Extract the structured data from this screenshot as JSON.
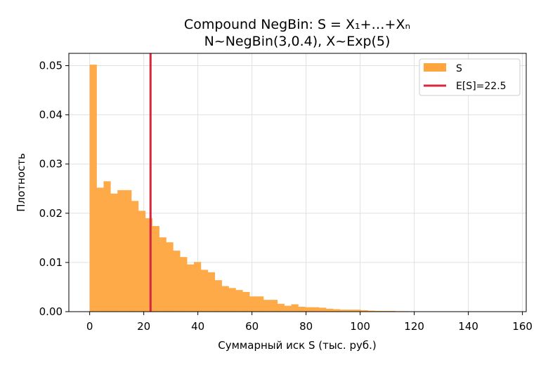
{
  "chart_data": {
    "type": "bar",
    "title_line1": "Compound NegBin: S = X₁+…+Xₙ",
    "title_line2": "N~NegBin(3,0.4), X~Exp(5)",
    "xlabel": "Суммарный иск S (тыс. руб.)",
    "ylabel": "Плотность",
    "xlim": [
      -7.7,
      161.4
    ],
    "ylim": [
      0,
      0.0525
    ],
    "xticks": [
      0,
      20,
      40,
      60,
      80,
      100,
      120,
      140,
      160
    ],
    "yticks": [
      0.0,
      0.01,
      0.02,
      0.03,
      0.04,
      0.05
    ],
    "ytick_labels": [
      "0.00",
      "0.01",
      "0.02",
      "0.03",
      "0.04",
      "0.05"
    ],
    "grid": true,
    "legend_position": "top-right",
    "bin_width": 2.57,
    "bin_start": 0,
    "values": [
      0.0502,
      0.0252,
      0.0265,
      0.024,
      0.0247,
      0.0247,
      0.0225,
      0.0205,
      0.019,
      0.0174,
      0.0151,
      0.0141,
      0.0124,
      0.0111,
      0.0096,
      0.0101,
      0.0085,
      0.008,
      0.0064,
      0.0052,
      0.0048,
      0.0044,
      0.004,
      0.0031,
      0.0031,
      0.0024,
      0.0024,
      0.0016,
      0.0012,
      0.0015,
      0.001,
      0.0009,
      0.0009,
      0.0008,
      0.0006,
      0.0005,
      0.0004,
      0.0004,
      0.0004,
      0.0003,
      0.0002,
      0.00015,
      0.00015,
      0.00015,
      0.0001,
      0.0001,
      5e-05,
      5e-05,
      3e-05,
      3e-05,
      2e-05,
      2e-05,
      2e-05,
      1e-05,
      1e-05,
      1e-05,
      1e-05,
      1e-05,
      1e-05,
      1e-05
    ],
    "series_name": "S",
    "bar_color": "#FFA53F",
    "mean_value": 22.5,
    "mean_label": "E[S]=22.5",
    "mean_color": "#D7263D",
    "grid_color": "#E0E0E0"
  }
}
